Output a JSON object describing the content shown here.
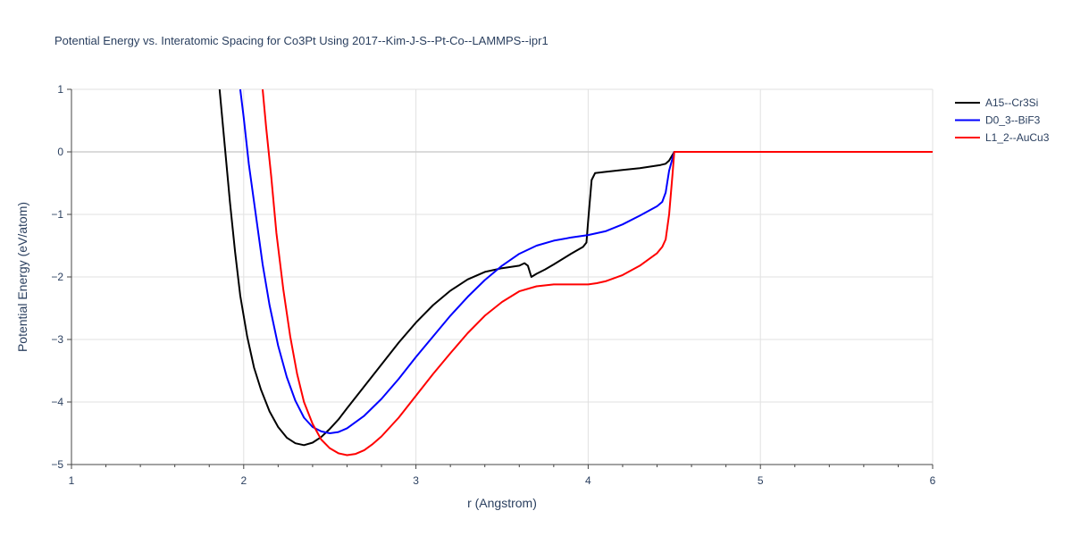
{
  "chart_data": {
    "type": "line",
    "title": "Potential Energy vs. Interatomic Spacing for Co3Pt Using 2017--Kim-J-S--Pt-Co--LAMMPS--ipr1",
    "xlabel": "r (Angstrom)",
    "ylabel": "Potential Energy (eV/atom)",
    "xlim": [
      1,
      6
    ],
    "ylim": [
      -5,
      1
    ],
    "xticks": [
      1,
      2,
      3,
      4,
      5,
      6
    ],
    "xtick_labels": [
      "1",
      "2",
      "3",
      "4",
      "5",
      "6"
    ],
    "yticks": [
      1,
      0,
      -1,
      -2,
      -3,
      -4,
      -5
    ],
    "ytick_labels": [
      "1",
      "0",
      "−1",
      "−2",
      "−3",
      "−4",
      "−5"
    ],
    "grid": true,
    "legend_position": "top-right",
    "series": [
      {
        "name": "A15--Cr3Si",
        "color": "#000000",
        "points": [
          [
            1.86,
            1.0
          ],
          [
            1.88,
            0.4
          ],
          [
            1.9,
            -0.2
          ],
          [
            1.92,
            -0.8
          ],
          [
            1.95,
            -1.6
          ],
          [
            1.98,
            -2.3
          ],
          [
            2.02,
            -2.95
          ],
          [
            2.06,
            -3.45
          ],
          [
            2.1,
            -3.8
          ],
          [
            2.15,
            -4.15
          ],
          [
            2.2,
            -4.4
          ],
          [
            2.25,
            -4.57
          ],
          [
            2.3,
            -4.66
          ],
          [
            2.35,
            -4.69
          ],
          [
            2.4,
            -4.65
          ],
          [
            2.45,
            -4.56
          ],
          [
            2.5,
            -4.43
          ],
          [
            2.55,
            -4.28
          ],
          [
            2.6,
            -4.1
          ],
          [
            2.7,
            -3.75
          ],
          [
            2.8,
            -3.4
          ],
          [
            2.9,
            -3.05
          ],
          [
            3.0,
            -2.73
          ],
          [
            3.1,
            -2.45
          ],
          [
            3.2,
            -2.22
          ],
          [
            3.3,
            -2.04
          ],
          [
            3.4,
            -1.92
          ],
          [
            3.5,
            -1.86
          ],
          [
            3.6,
            -1.82
          ],
          [
            3.63,
            -1.78
          ],
          [
            3.65,
            -1.82
          ],
          [
            3.67,
            -2.0
          ],
          [
            3.7,
            -1.95
          ],
          [
            3.75,
            -1.88
          ],
          [
            3.8,
            -1.8
          ],
          [
            3.9,
            -1.63
          ],
          [
            3.97,
            -1.52
          ],
          [
            3.99,
            -1.45
          ],
          [
            4.0,
            -1.1
          ],
          [
            4.02,
            -0.45
          ],
          [
            4.04,
            -0.34
          ],
          [
            4.1,
            -0.32
          ],
          [
            4.2,
            -0.29
          ],
          [
            4.3,
            -0.26
          ],
          [
            4.42,
            -0.21
          ],
          [
            4.45,
            -0.19
          ],
          [
            4.47,
            -0.14
          ],
          [
            4.5,
            0.0
          ],
          [
            4.6,
            0.0
          ],
          [
            5.0,
            0.0
          ],
          [
            5.5,
            0.0
          ],
          [
            6.0,
            0.0
          ]
        ]
      },
      {
        "name": "D0_3--BiF3",
        "color": "#0000ff",
        "points": [
          [
            1.98,
            1.0
          ],
          [
            2.0,
            0.55
          ],
          [
            2.03,
            -0.2
          ],
          [
            2.07,
            -1.0
          ],
          [
            2.11,
            -1.8
          ],
          [
            2.15,
            -2.45
          ],
          [
            2.2,
            -3.1
          ],
          [
            2.25,
            -3.6
          ],
          [
            2.3,
            -3.98
          ],
          [
            2.35,
            -4.25
          ],
          [
            2.4,
            -4.4
          ],
          [
            2.45,
            -4.47
          ],
          [
            2.5,
            -4.5
          ],
          [
            2.55,
            -4.48
          ],
          [
            2.6,
            -4.42
          ],
          [
            2.7,
            -4.22
          ],
          [
            2.8,
            -3.95
          ],
          [
            2.9,
            -3.63
          ],
          [
            3.0,
            -3.28
          ],
          [
            3.1,
            -2.95
          ],
          [
            3.2,
            -2.62
          ],
          [
            3.3,
            -2.32
          ],
          [
            3.4,
            -2.05
          ],
          [
            3.5,
            -1.82
          ],
          [
            3.6,
            -1.63
          ],
          [
            3.7,
            -1.5
          ],
          [
            3.8,
            -1.42
          ],
          [
            3.9,
            -1.37
          ],
          [
            4.0,
            -1.33
          ],
          [
            4.1,
            -1.27
          ],
          [
            4.2,
            -1.16
          ],
          [
            4.3,
            -1.02
          ],
          [
            4.4,
            -0.87
          ],
          [
            4.43,
            -0.8
          ],
          [
            4.45,
            -0.65
          ],
          [
            4.47,
            -0.3
          ],
          [
            4.5,
            0.0
          ],
          [
            4.6,
            0.0
          ],
          [
            5.0,
            0.0
          ],
          [
            5.5,
            0.0
          ],
          [
            6.0,
            0.0
          ]
        ]
      },
      {
        "name": "L1_2--AuCu3",
        "color": "#ff0000",
        "points": [
          [
            2.11,
            1.0
          ],
          [
            2.13,
            0.4
          ],
          [
            2.16,
            -0.4
          ],
          [
            2.19,
            -1.3
          ],
          [
            2.23,
            -2.2
          ],
          [
            2.27,
            -2.95
          ],
          [
            2.31,
            -3.55
          ],
          [
            2.35,
            -4.0
          ],
          [
            2.4,
            -4.35
          ],
          [
            2.45,
            -4.6
          ],
          [
            2.5,
            -4.74
          ],
          [
            2.55,
            -4.82
          ],
          [
            2.6,
            -4.85
          ],
          [
            2.65,
            -4.83
          ],
          [
            2.7,
            -4.77
          ],
          [
            2.75,
            -4.67
          ],
          [
            2.8,
            -4.55
          ],
          [
            2.9,
            -4.25
          ],
          [
            3.0,
            -3.9
          ],
          [
            3.1,
            -3.55
          ],
          [
            3.2,
            -3.22
          ],
          [
            3.3,
            -2.9
          ],
          [
            3.4,
            -2.62
          ],
          [
            3.5,
            -2.4
          ],
          [
            3.6,
            -2.23
          ],
          [
            3.7,
            -2.15
          ],
          [
            3.8,
            -2.12
          ],
          [
            3.9,
            -2.12
          ],
          [
            4.0,
            -2.12
          ],
          [
            4.05,
            -2.1
          ],
          [
            4.1,
            -2.07
          ],
          [
            4.2,
            -1.97
          ],
          [
            4.3,
            -1.82
          ],
          [
            4.4,
            -1.62
          ],
          [
            4.43,
            -1.52
          ],
          [
            4.45,
            -1.4
          ],
          [
            4.47,
            -1.0
          ],
          [
            4.49,
            -0.35
          ],
          [
            4.5,
            0.0
          ],
          [
            4.6,
            0.0
          ],
          [
            5.0,
            0.0
          ],
          [
            5.5,
            0.0
          ],
          [
            6.0,
            0.0
          ]
        ]
      }
    ]
  }
}
